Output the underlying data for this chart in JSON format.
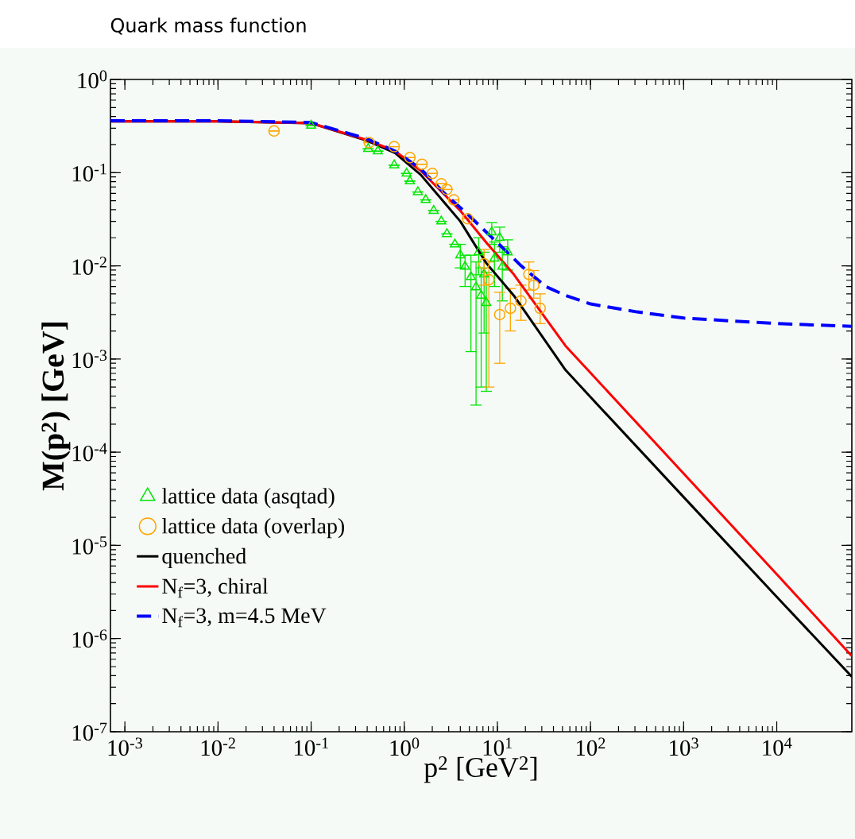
{
  "chart_data": {
    "type": "line",
    "title": "Quark mass function",
    "xlabel": "p$^{2}$ [GeV$^{2}$]",
    "ylabel": "M(p$^{2}$) [GeV]",
    "log": "xy",
    "legend": "bottom left",
    "xlim": [
      0.0007,
      64000
    ],
    "ylim": [
      1e-07,
      1
    ],
    "xticks": [
      {
        "value": 0.001,
        "label": "10$^{-3}$"
      },
      {
        "value": 0.01,
        "label": "10$^{-2}$"
      },
      {
        "value": 0.1,
        "label": "10$^{-1}$"
      },
      {
        "value": 1,
        "label": "10$^{0}$"
      },
      {
        "value": 10,
        "label": "10$^{1}$"
      },
      {
        "value": 100,
        "label": "10$^{2}$"
      },
      {
        "value": 1000,
        "label": "10$^{3}$"
      },
      {
        "value": 10000,
        "label": "10$^{4}$"
      }
    ],
    "yticks": [
      {
        "value": 1e-07,
        "label": "10$^{-7}$"
      },
      {
        "value": 1e-06,
        "label": "10$^{-6}$"
      },
      {
        "value": 1e-05,
        "label": "10$^{-5}$"
      },
      {
        "value": 0.0001,
        "label": "10$^{-4}$"
      },
      {
        "value": 0.001,
        "label": "10$^{-3}$"
      },
      {
        "value": 0.01,
        "label": "10$^{-2}$"
      },
      {
        "value": 0.1,
        "label": "10$^{-1}$"
      },
      {
        "value": 1,
        "label": "10$^{0}$"
      }
    ],
    "series": [
      {
        "name": "lattice data (asqtad)",
        "type": "scatter",
        "marker": "triangle",
        "color": "#00e600",
        "x": [
          0.1,
          0.41,
          0.52,
          0.78,
          1.06,
          1.15,
          1.4,
          1.7,
          2.07,
          2.5,
          2.87,
          3.5,
          4.0,
          4.5,
          5.2,
          5.9,
          6.7,
          7.6,
          8.7,
          10.6,
          12.9,
          11.3,
          9.3,
          6.3,
          7.2
        ],
        "values": [
          0.32,
          0.18,
          0.17,
          0.12,
          0.098,
          0.081,
          0.062,
          0.051,
          0.039,
          0.03,
          0.022,
          0.017,
          0.013,
          0.0098,
          0.0076,
          0.0059,
          0.0048,
          0.004,
          0.023,
          0.02,
          0.014,
          0.0098,
          0.012,
          0.014,
          0.0081
        ],
        "errors": [
          null,
          null,
          null,
          null,
          null,
          null,
          null,
          null,
          null,
          null,
          null,
          null,
          [
            0.0095,
            0.017
          ],
          [
            0.006,
            0.013
          ],
          [
            0.0012,
            0.013
          ],
          [
            0.00032,
            0.011
          ],
          [
            0.0005,
            0.0095
          ],
          [
            0.00045,
            0.0085
          ],
          [
            0.017,
            0.029
          ],
          [
            0.014,
            0.026
          ],
          [
            0.009,
            0.019
          ],
          [
            0.0042,
            0.016
          ],
          [
            0.006,
            0.018
          ],
          [
            0.008,
            0.02
          ],
          [
            0.0019,
            0.014
          ]
        ]
      },
      {
        "name": "lattice data (overlap)",
        "type": "scatter",
        "marker": "circle",
        "color": "#ffa500",
        "x": [
          0.04,
          0.42,
          0.78,
          1.15,
          1.55,
          2.0,
          2.5,
          2.87,
          3.4,
          4.8,
          7.2,
          8.1,
          10.6,
          13.8,
          17.9,
          21.8,
          24.6,
          28.8
        ],
        "values": [
          0.28,
          0.21,
          0.19,
          0.145,
          0.123,
          0.098,
          0.076,
          0.066,
          0.051,
          0.032,
          0.0105,
          0.0071,
          0.003,
          0.0035,
          0.0042,
          0.0081,
          0.0062,
          0.0035
        ],
        "errors": [
          null,
          null,
          null,
          null,
          null,
          null,
          null,
          null,
          null,
          null,
          [
            0.0062,
            0.015
          ],
          [
            0.0005,
            0.011
          ],
          [
            0.0009,
            0.0052
          ],
          [
            0.002,
            0.0057
          ],
          [
            0.0026,
            0.0062
          ],
          [
            0.0055,
            0.011
          ],
          [
            0.0045,
            0.0089
          ],
          [
            0.0024,
            0.005
          ]
        ]
      },
      {
        "name": "quenched",
        "type": "line",
        "line_style": "solid",
        "color": "#000000",
        "x": [
          0.0007,
          0.01,
          0.1,
          0.4,
          0.8,
          1.5,
          4,
          7.6,
          15,
          54,
          100,
          1000,
          10000,
          64000
        ],
        "values": [
          0.355,
          0.355,
          0.34,
          0.22,
          0.162,
          0.095,
          0.03,
          0.0107,
          0.0048,
          0.00076,
          0.00039,
          3.3e-05,
          2.8e-06,
          3.9e-07
        ]
      },
      {
        "name": "N$_{f}$=3, chiral",
        "type": "line",
        "line_style": "solid",
        "color": "#ff0000",
        "x": [
          0.0007,
          0.01,
          0.1,
          0.4,
          0.8,
          1.5,
          4,
          7.6,
          15,
          54,
          100,
          1000,
          10000,
          64000
        ],
        "values": [
          0.355,
          0.355,
          0.34,
          0.224,
          0.17,
          0.105,
          0.039,
          0.0178,
          0.0081,
          0.00138,
          0.00071,
          5.9e-05,
          4.9e-06,
          6.5e-07
        ]
      },
      {
        "name": "N$_{f}$=3, m=4.5 MeV",
        "type": "line",
        "line_style": "dashed",
        "color": "#0000ff",
        "x": [
          0.0007,
          0.01,
          0.1,
          0.4,
          0.8,
          1.5,
          2.7,
          4.9,
          10.7,
          18,
          33,
          54,
          100,
          316,
          1000,
          10000,
          64000
        ],
        "values": [
          0.36,
          0.36,
          0.345,
          0.23,
          0.17,
          0.11,
          0.06,
          0.035,
          0.0166,
          0.01,
          0.006,
          0.0048,
          0.0039,
          0.0032,
          0.00275,
          0.0024,
          0.00224
        ]
      }
    ]
  }
}
